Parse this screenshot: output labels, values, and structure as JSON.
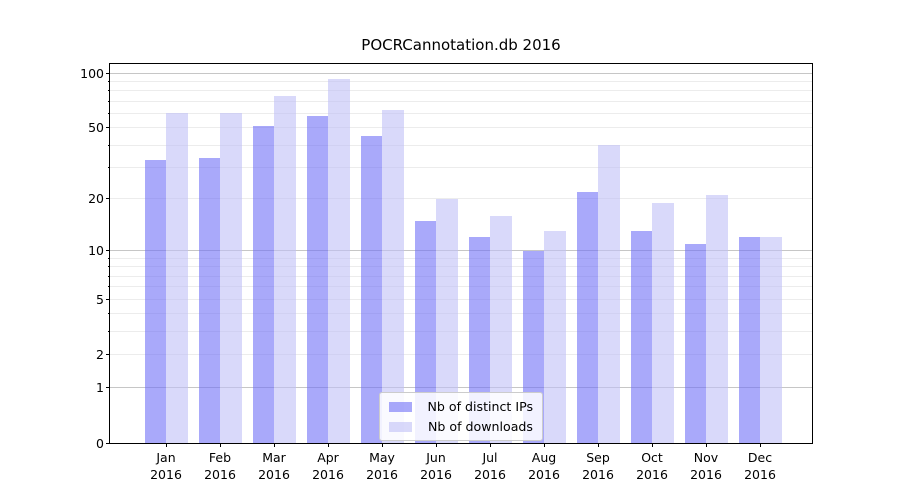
{
  "title": "POCRCannotation.db 2016",
  "legend": [
    {
      "label": "Nb of distinct IPs",
      "color": "#a9a9fa"
    },
    {
      "label": "Nb of downloads",
      "color": "#d8d8f8"
    }
  ],
  "axis": {
    "ytick_labels": [
      "0",
      "1",
      "2",
      "5",
      "10",
      "20",
      "50",
      "100"
    ],
    "xtick_labels": [
      "Jan\n2016",
      "Feb\n2016",
      "Mar\n2016",
      "Apr\n2016",
      "May\n2016",
      "Jun\n2016",
      "Jul\n2016",
      "Aug\n2016",
      "Sep\n2016",
      "Oct\n2016",
      "Nov\n2016",
      "Dec\n2016"
    ]
  },
  "chart_data": {
    "type": "bar",
    "title": "POCRCannotation.db 2016",
    "scale": "log1p",
    "categories": [
      "Jan 2016",
      "Feb 2016",
      "Mar 2016",
      "Apr 2016",
      "May 2016",
      "Jun 2016",
      "Jul 2016",
      "Aug 2016",
      "Sep 2016",
      "Oct 2016",
      "Nov 2016",
      "Dec 2016"
    ],
    "series": [
      {
        "name": "Nb of distinct IPs",
        "fill": "rgba(112,112,247,0.6)",
        "solid": "#a9a9fa",
        "values": [
          33,
          34,
          51,
          58,
          45,
          15,
          12,
          10,
          22,
          13,
          11,
          12
        ]
      },
      {
        "name": "Nb of downloads",
        "fill": "rgba(192,192,247,0.6)",
        "solid": "#d8d8f8",
        "values": [
          60,
          60,
          75,
          93,
          63,
          20,
          16,
          13,
          40,
          19,
          21,
          12
        ]
      }
    ],
    "yticks": [
      0,
      1,
      2,
      5,
      10,
      20,
      50,
      100
    ],
    "minor_yticks": [
      3,
      4,
      6,
      7,
      8,
      9,
      30,
      40,
      60,
      70,
      80,
      90
    ],
    "decade_gridlines": [
      1,
      10,
      100
    ],
    "ylim": [
      0,
      112
    ],
    "xlabel": "",
    "ylabel": "",
    "grid": true,
    "legend_position": "lower center"
  }
}
